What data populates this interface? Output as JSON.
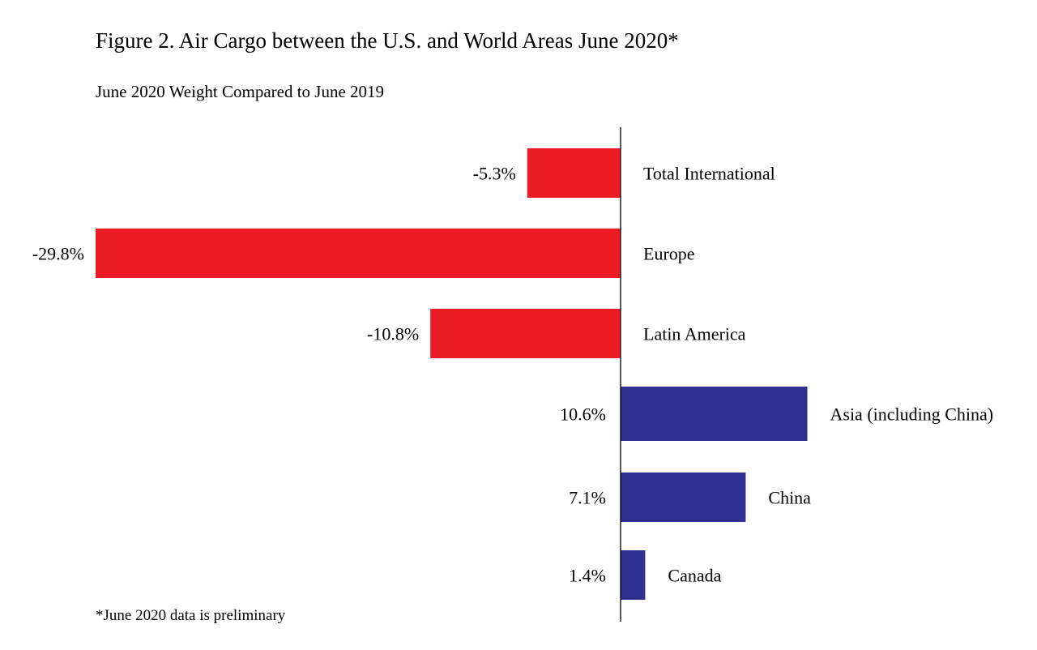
{
  "chart_data": {
    "type": "bar",
    "orientation": "horizontal",
    "title": "Figure 2. Air Cargo between the U.S. and World Areas June 2020*",
    "subtitle": "June 2020 Weight Compared to June 2019",
    "footnote": "*June 2020 data is preliminary",
    "categories": [
      "Total International",
      "Europe",
      "Latin America",
      "Asia (including China)",
      "China",
      "Canada"
    ],
    "values": [
      -5.3,
      -29.8,
      -10.8,
      10.6,
      7.1,
      1.4
    ],
    "data_labels": [
      "-5.3%",
      "-29.8%",
      "-10.8%",
      "10.6%",
      "7.1%",
      "1.4%"
    ],
    "value_unit": "%",
    "colors": {
      "negative": "#ed1c24",
      "positive": "#2e3192"
    },
    "grid": false,
    "legend": "none"
  }
}
